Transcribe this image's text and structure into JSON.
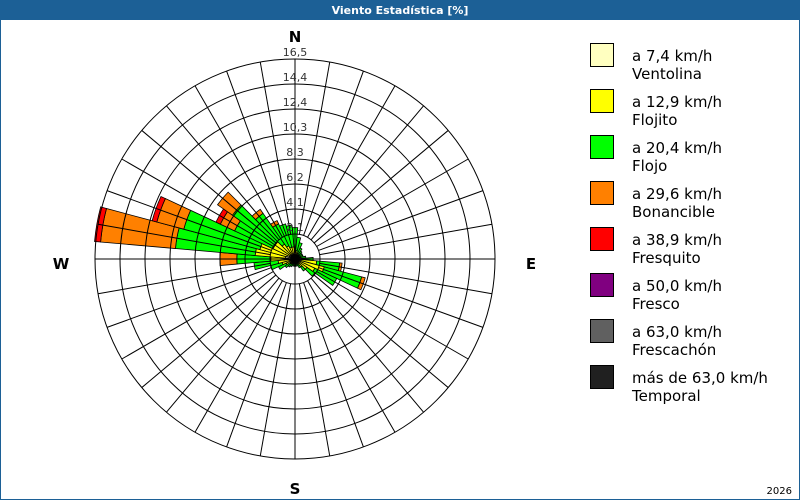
{
  "window": {
    "title": "Viento Estadística [%]",
    "footer": "2026"
  },
  "chart_data": {
    "type": "wind-rose",
    "title": "Viento Estadística [%]",
    "unit": "%",
    "rmax": 16.5,
    "ring_labels": [
      "2,1",
      "4,1",
      "6,2",
      "8,3",
      "10,3",
      "12,4",
      "14,4",
      "16,5"
    ],
    "ring_values": [
      2.06,
      4.12,
      6.19,
      8.25,
      10.31,
      12.38,
      14.44,
      16.5
    ],
    "compass": {
      "N": "N",
      "E": "E",
      "S": "S",
      "W": "W"
    },
    "classes": [
      {
        "range": "a 7,4 km/h",
        "name": "Ventolina",
        "color": "#ffffc0"
      },
      {
        "range": "a 12,9 km/h",
        "name": "Flojito",
        "color": "#ffff00"
      },
      {
        "range": "a 20,4 km/h",
        "name": "Flojo",
        "color": "#00ff00"
      },
      {
        "range": "a 29,6 km/h",
        "name": "Bonancible",
        "color": "#ff8000"
      },
      {
        "range": "a 38,9 km/h",
        "name": "Fresquito",
        "color": "#ff0000"
      },
      {
        "range": "a 50,0 km/h",
        "name": "Fresco",
        "color": "#800080"
      },
      {
        "range": "a 63,0 km/h",
        "name": "Frescachón",
        "color": "#606060"
      },
      {
        "range": "más de 63,0 km/h",
        "name": "Temporal",
        "color": "#202020"
      }
    ],
    "sectors": [
      {
        "dir": 0,
        "values": [
          0.4,
          0.5,
          1.7
        ]
      },
      {
        "dir": 10,
        "values": [
          0.3,
          0.4,
          1.1
        ]
      },
      {
        "dir": 20,
        "values": [
          0.3,
          0.3,
          0.8
        ]
      },
      {
        "dir": 30,
        "values": [
          0.3,
          0.2,
          0.5
        ]
      },
      {
        "dir": 40,
        "values": [
          0.2,
          0.2,
          0.4
        ]
      },
      {
        "dir": 50,
        "values": [
          0.2,
          0.2,
          0.3
        ]
      },
      {
        "dir": 60,
        "values": [
          0.2,
          0.2,
          0.3
        ]
      },
      {
        "dir": 70,
        "values": [
          0.2,
          0.2,
          0.3
        ]
      },
      {
        "dir": 80,
        "values": [
          0.2,
          0.3,
          0.4
        ]
      },
      {
        "dir": 90,
        "values": [
          0.3,
          0.5,
          0.7
        ]
      },
      {
        "dir": 100,
        "values": [
          0.4,
          1.4,
          1.9,
          0.2
        ]
      },
      {
        "dir": 110,
        "values": [
          0.5,
          2.0,
          3.2,
          0.3
        ]
      },
      {
        "dir": 120,
        "values": [
          0.4,
          1.4,
          2.0
        ]
      },
      {
        "dir": 130,
        "values": [
          0.3,
          0.9,
          0.8
        ]
      },
      {
        "dir": 140,
        "values": [
          0.3,
          0.5,
          0.4
        ]
      },
      {
        "dir": 150,
        "values": [
          0.2,
          0.3,
          0.3
        ]
      },
      {
        "dir": 160,
        "values": [
          0.2,
          0.2,
          0.2
        ]
      },
      {
        "dir": 170,
        "values": [
          0.2,
          0.2,
          0.2
        ]
      },
      {
        "dir": 180,
        "values": [
          0.2,
          0.2,
          0.2
        ]
      },
      {
        "dir": 190,
        "values": [
          0.2,
          0.2,
          0.2
        ]
      },
      {
        "dir": 200,
        "values": [
          0.2,
          0.2,
          0.2
        ]
      },
      {
        "dir": 210,
        "values": [
          0.2,
          0.2,
          0.3
        ]
      },
      {
        "dir": 220,
        "values": [
          0.2,
          0.3,
          0.3
        ]
      },
      {
        "dir": 230,
        "values": [
          0.2,
          0.3,
          0.5
        ]
      },
      {
        "dir": 240,
        "values": [
          0.3,
          0.5,
          0.7
        ]
      },
      {
        "dir": 250,
        "values": [
          0.3,
          0.8,
          1.0
        ]
      },
      {
        "dir": 260,
        "values": [
          0.4,
          1.0,
          2.0
        ]
      },
      {
        "dir": 270,
        "values": [
          0.5,
          1.5,
          2.8,
          1.4
        ]
      },
      {
        "dir": 280,
        "values": [
          0.8,
          2.5,
          6.6,
          6.2,
          0.5
        ]
      },
      {
        "dir": 290,
        "values": [
          0.7,
          2.3,
          6.5,
          2.3,
          0.4
        ]
      },
      {
        "dir": 300,
        "values": [
          0.5,
          1.5,
          3.5,
          1.3,
          0.4
        ]
      },
      {
        "dir": 310,
        "values": [
          0.5,
          1.5,
          4.3,
          1.5
        ]
      },
      {
        "dir": 320,
        "values": [
          0.4,
          1.1,
          3.1,
          0.4
        ]
      },
      {
        "dir": 330,
        "values": [
          0.4,
          0.8,
          2.0,
          0.3
        ]
      },
      {
        "dir": 340,
        "values": [
          0.4,
          0.6,
          2.0
        ]
      },
      {
        "dir": 350,
        "values": [
          0.4,
          0.6,
          1.8
        ]
      }
    ],
    "legend_position": "right",
    "grid": true
  }
}
